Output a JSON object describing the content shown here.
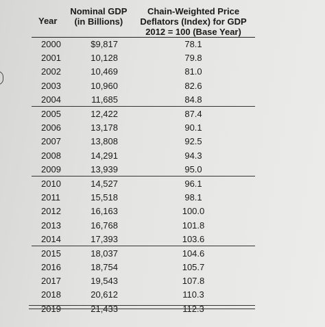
{
  "table": {
    "headers": {
      "year": "Year",
      "gdp_line1": "Nominal GDP",
      "gdp_line2": "(in Billions)",
      "def_line1": "Chain-Weighted Price",
      "def_line2": "Deflators (Index) for GDP",
      "def_line3": "2012 = 100 (Base Year)"
    },
    "rows": [
      {
        "year": "2000",
        "gdp": "$9,817",
        "deflator": "78.1"
      },
      {
        "year": "2001",
        "gdp": "10,128",
        "deflator": "79.8"
      },
      {
        "year": "2002",
        "gdp": "10,469",
        "deflator": "81.0"
      },
      {
        "year": "2003",
        "gdp": "10,960",
        "deflator": "82.6"
      },
      {
        "year": "2004",
        "gdp": "11,685",
        "deflator": "84.8"
      },
      {
        "year": "2005",
        "gdp": "12,422",
        "deflator": "87.4"
      },
      {
        "year": "2006",
        "gdp": "13,178",
        "deflator": "90.1"
      },
      {
        "year": "2007",
        "gdp": "13,808",
        "deflator": "92.5"
      },
      {
        "year": "2008",
        "gdp": "14,291",
        "deflator": "94.3"
      },
      {
        "year": "2009",
        "gdp": "13,939",
        "deflator": "95.0"
      },
      {
        "year": "2010",
        "gdp": "14,527",
        "deflator": "96.1"
      },
      {
        "year": "2011",
        "gdp": "15,518",
        "deflator": "98.1"
      },
      {
        "year": "2012",
        "gdp": "16,163",
        "deflator": "100.0"
      },
      {
        "year": "2013",
        "gdp": "16,768",
        "deflator": "101.8"
      },
      {
        "year": "2014",
        "gdp": "17,393",
        "deflator": "103.6"
      },
      {
        "year": "2015",
        "gdp": "18,037",
        "deflator": "104.6"
      },
      {
        "year": "2016",
        "gdp": "18,754",
        "deflator": "105.7"
      },
      {
        "year": "2017",
        "gdp": "19,543",
        "deflator": "107.8"
      },
      {
        "year": "2018",
        "gdp": "20,612",
        "deflator": "110.3"
      },
      {
        "year": "2019",
        "gdp": "21,433",
        "deflator": "112.3"
      }
    ]
  }
}
